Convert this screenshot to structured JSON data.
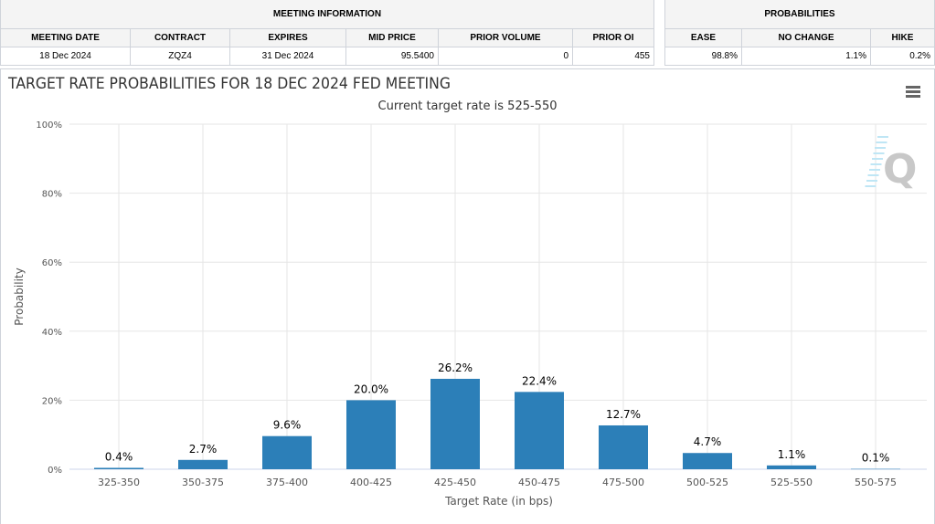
{
  "meeting_info": {
    "group_label": "MEETING INFORMATION",
    "headers": [
      "MEETING DATE",
      "CONTRACT",
      "EXPIRES",
      "MID PRICE",
      "PRIOR VOLUME",
      "PRIOR OI"
    ],
    "values": [
      "18 Dec 2024",
      "ZQZ4",
      "31 Dec 2024",
      "95.5400",
      "0",
      "455"
    ]
  },
  "probabilities": {
    "group_label": "PROBABILITIES",
    "headers": [
      "EASE",
      "NO CHANGE",
      "HIKE"
    ],
    "values": [
      "98.8%",
      "1.1%",
      "0.2%"
    ]
  },
  "menu_icon": "hamburger-icon",
  "watermark": "Q",
  "chart_data": {
    "type": "bar",
    "title": "TARGET RATE PROBABILITIES FOR 18 DEC 2024 FED MEETING",
    "subtitle": "Current target rate is 525-550",
    "xlabel": "Target Rate (in bps)",
    "ylabel": "Probability",
    "categories": [
      "325-350",
      "350-375",
      "375-400",
      "400-425",
      "425-450",
      "450-475",
      "475-500",
      "500-525",
      "525-550",
      "550-575"
    ],
    "values": [
      0.4,
      2.7,
      9.6,
      20.0,
      26.2,
      22.4,
      12.7,
      4.7,
      1.1,
      0.1
    ],
    "data_labels": [
      "0.4%",
      "2.7%",
      "9.6%",
      "20.0%",
      "26.2%",
      "22.4%",
      "12.7%",
      "4.7%",
      "1.1%",
      "0.1%"
    ],
    "yticks": [
      "0%",
      "20%",
      "40%",
      "60%",
      "80%",
      "100%"
    ],
    "ylim": [
      0,
      100
    ],
    "grid": true,
    "bar_color": "#2c7fb8"
  }
}
